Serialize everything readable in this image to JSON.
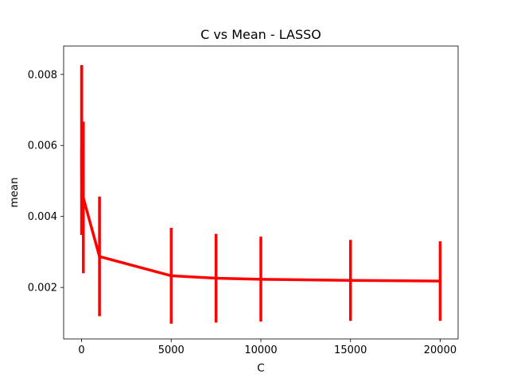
{
  "chart_data": {
    "type": "line",
    "title": "C vs Mean - LASSO",
    "xlabel": "C",
    "ylabel": "mean",
    "xlim": [
      -1000,
      21000
    ],
    "ylim": [
      0.00055,
      0.0088
    ],
    "xticks": [
      0,
      5000,
      10000,
      15000,
      20000
    ],
    "xtick_labels": [
      "0",
      "5000",
      "10000",
      "15000",
      "20000"
    ],
    "yticks": [
      0.002,
      0.004,
      0.006,
      0.008
    ],
    "ytick_labels": [
      "0.002",
      "0.004",
      "0.006",
      "0.008"
    ],
    "series": [
      {
        "name": "mean",
        "color": "#ff0000",
        "x": [
          1,
          10,
          100,
          1000,
          5000,
          7500,
          10000,
          15000,
          20000
        ],
        "y": [
          0.00585,
          0.00475,
          0.00452,
          0.00287,
          0.00233,
          0.00226,
          0.00223,
          0.0022,
          0.00218
        ],
        "err_low": [
          0.00348,
          0.00348,
          0.0024,
          0.00119,
          0.00098,
          0.00101,
          0.00104,
          0.00106,
          0.00106
        ],
        "err_high": [
          0.00826,
          0.00826,
          0.00667,
          0.00456,
          0.00368,
          0.00351,
          0.00343,
          0.00334,
          0.0033
        ]
      }
    ]
  }
}
